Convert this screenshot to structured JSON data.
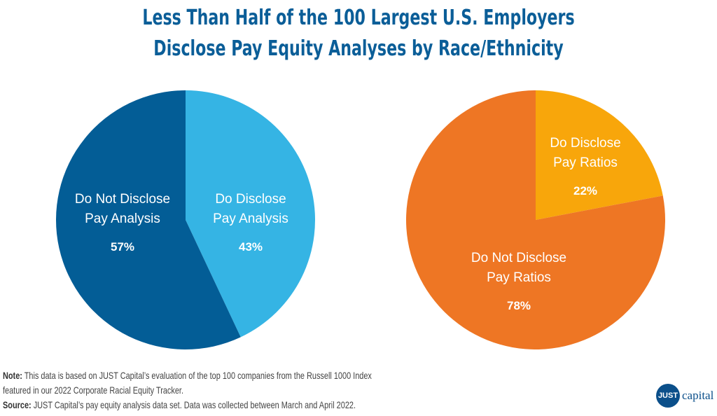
{
  "chart_data": [
    {
      "type": "pie",
      "start": "top",
      "direction": "clockwise",
      "slices": [
        {
          "label_lines": [
            "Do Disclose",
            "Pay Analysis"
          ],
          "value": 43,
          "pct_label": "43%",
          "color": "#35b4e4"
        },
        {
          "label_lines": [
            "Do Not Disclose",
            "Pay Analysis"
          ],
          "value": 57,
          "pct_label": "57%",
          "color": "#035d96"
        }
      ]
    },
    {
      "type": "pie",
      "start": "top",
      "direction": "clockwise",
      "slices": [
        {
          "label_lines": [
            "Do Disclose",
            "Pay Ratios"
          ],
          "value": 22,
          "pct_label": "22%",
          "color": "#f8a60b"
        },
        {
          "label_lines": [
            "Do Not Disclose",
            "Pay Ratios"
          ],
          "value": 78,
          "pct_label": "78%",
          "color": "#ee7624"
        }
      ]
    }
  ],
  "title": {
    "line1": "Less Than Half of the 100 Largest U.S. Employers",
    "line2": "Disclose Pay Equity Analyses by Race/Ethnicity"
  },
  "notes": {
    "note_label": "Note:",
    "note_text": " This data is based on JUST Capital’s evaluation of the top 100 companies from the Russell 1000 Index",
    "note_text2": "featured in our 2022 Corporate Racial Equity Tracker.",
    "source_label": "Source:",
    "source_text": " JUST Capital’s pay equity analysis data set. Data was collected between March and April 2022."
  },
  "logo": {
    "mark": "JUST",
    "word": "capital"
  }
}
